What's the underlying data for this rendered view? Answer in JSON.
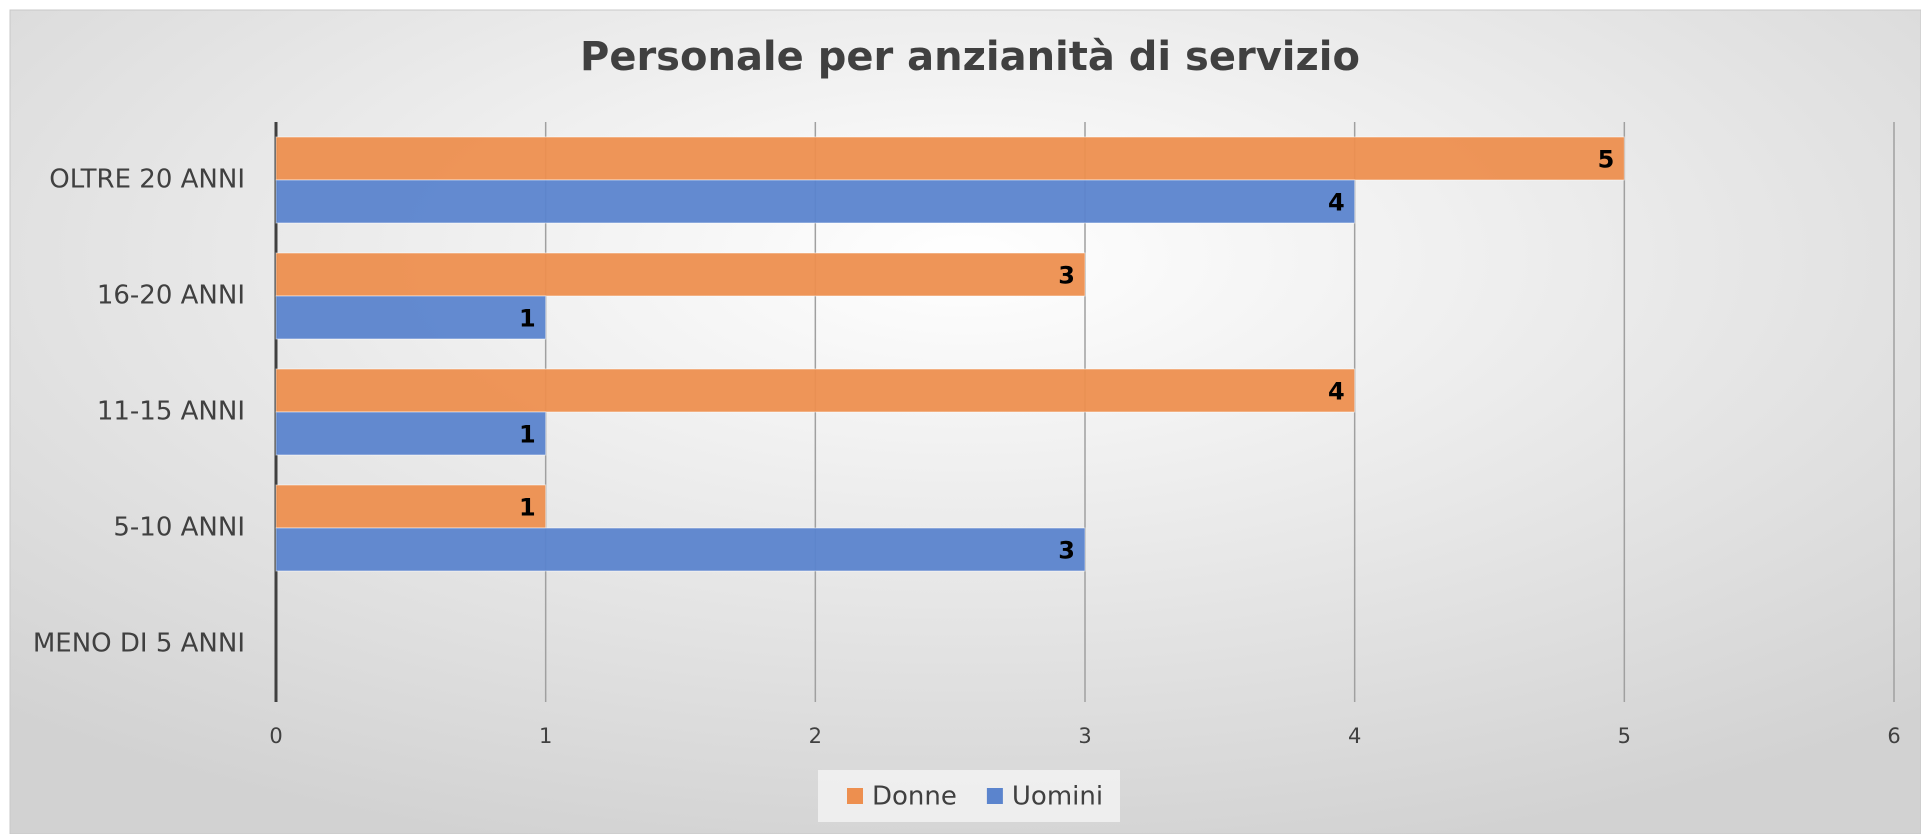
{
  "chart_data": {
    "type": "hbar",
    "title": "Personale per anzianità di servizio",
    "categories": [
      "OLTRE 20 ANNI",
      "16-20 ANNI",
      "11-15 ANNI",
      "5-10 ANNI",
      "MENO DI 5 ANNI"
    ],
    "series": [
      {
        "name": "Donne",
        "color": "#ed8f4f",
        "values": [
          5,
          3,
          4,
          1,
          null
        ]
      },
      {
        "name": "Uomini",
        "color": "#5b84cd",
        "values": [
          4,
          1,
          1,
          3,
          null
        ]
      }
    ],
    "xlim": [
      0,
      6
    ],
    "xticks": [
      0,
      1,
      2,
      3,
      4,
      5,
      6
    ],
    "grid": true,
    "legend": "bottom"
  }
}
